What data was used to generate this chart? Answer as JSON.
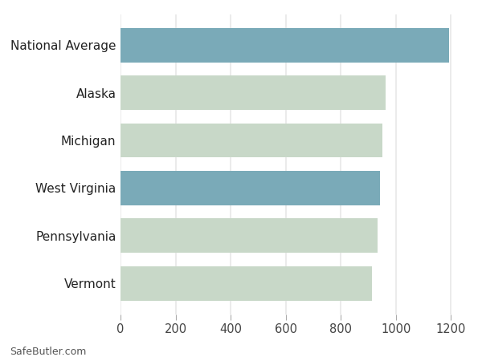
{
  "categories": [
    "Vermont",
    "Pennsylvania",
    "West Virginia",
    "Michigan",
    "Alaska",
    "National Average"
  ],
  "values": [
    912,
    932,
    942,
    952,
    962,
    1192
  ],
  "bar_colors": [
    "#c8d8c8",
    "#c8d8c8",
    "#7aaab8",
    "#c8d8c8",
    "#c8d8c8",
    "#7aaab8"
  ],
  "xlim": [
    0,
    1260
  ],
  "xticks": [
    0,
    200,
    400,
    600,
    800,
    1000,
    1200
  ],
  "background_color": "#ffffff",
  "grid_color": "#e8e8e8",
  "bar_height": 0.72,
  "footer_text": "SafeButler.com",
  "ylabel_fontsize": 11,
  "tick_fontsize": 10.5
}
